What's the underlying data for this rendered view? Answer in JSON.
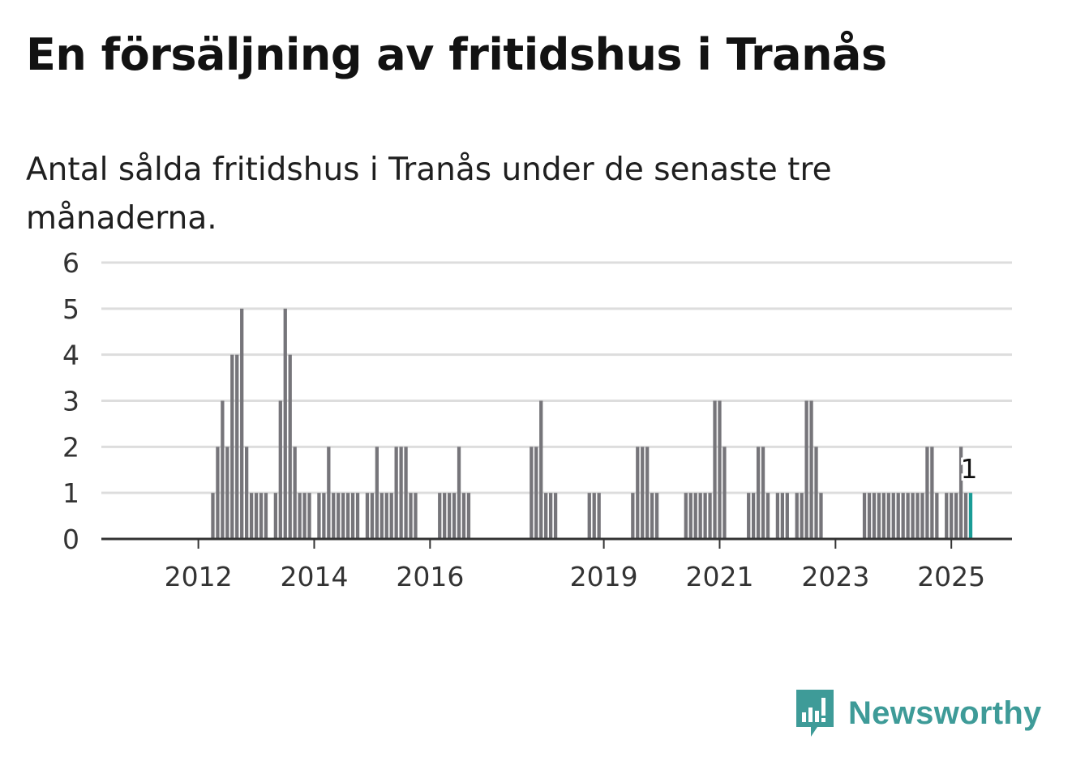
{
  "title": "En försäljning av fritidshus i Tranås",
  "subtitle": "Antal sålda fritidshus i Tranås under de senaste tre månaderna.",
  "logo": {
    "text": "Newsworthy",
    "icon": "newsworthy-chart-icon",
    "color": "#3e9b98"
  },
  "colors": {
    "bar": "#76757a",
    "highlight": "#1a9c96",
    "grid": "#dddddd",
    "axis": "#333333"
  },
  "chart_data": {
    "type": "bar",
    "title": "En försäljning av fritidshus i Tranås",
    "subtitle": "Antal sålda fritidshus i Tranås under de senaste tre månaderna.",
    "xlabel": "",
    "ylabel": "",
    "ylim": [
      0,
      6
    ],
    "yticks": [
      "0",
      "1",
      "2",
      "3",
      "4",
      "5",
      "6"
    ],
    "xtick_labels": [
      "2012",
      "2014",
      "2016",
      "2019",
      "2021",
      "2023",
      "2025"
    ],
    "grid": true,
    "legend": "none",
    "start_period": "2011-05",
    "period": "monthly",
    "last_value_label": "1",
    "series": [
      {
        "values": [
          0,
          0,
          0,
          0,
          0,
          0,
          0,
          0,
          0,
          0,
          0,
          1,
          2,
          3,
          2,
          4,
          4,
          5,
          2,
          1,
          1,
          1,
          1,
          0,
          1,
          3,
          5,
          4,
          2,
          1,
          1,
          1,
          0,
          1,
          1,
          2,
          1,
          1,
          1,
          1,
          1,
          1,
          0,
          1,
          1,
          2,
          1,
          1,
          1,
          2,
          2,
          2,
          1,
          1,
          0,
          0,
          0,
          0,
          1,
          1,
          1,
          1,
          2,
          1,
          1,
          0,
          0,
          0,
          0,
          0,
          0,
          0,
          0,
          0,
          0,
          0,
          0,
          2,
          2,
          3,
          1,
          1,
          1,
          0,
          0,
          0,
          0,
          0,
          0,
          1,
          1,
          1,
          0,
          0,
          0,
          0,
          0,
          0,
          1,
          2,
          2,
          2,
          1,
          1,
          0,
          0,
          0,
          0,
          0,
          1,
          1,
          1,
          1,
          1,
          1,
          3,
          3,
          2,
          0,
          0,
          0,
          0,
          1,
          1,
          2,
          2,
          1,
          0,
          1,
          1,
          1,
          0,
          1,
          1,
          3,
          3,
          2,
          1,
          0,
          0,
          0,
          0,
          0,
          0,
          0,
          0,
          1,
          1,
          1,
          1,
          1,
          1,
          1,
          1,
          1,
          1,
          1,
          1,
          1,
          2,
          2,
          1,
          0,
          1,
          1,
          1,
          2,
          1,
          1
        ]
      }
    ]
  }
}
